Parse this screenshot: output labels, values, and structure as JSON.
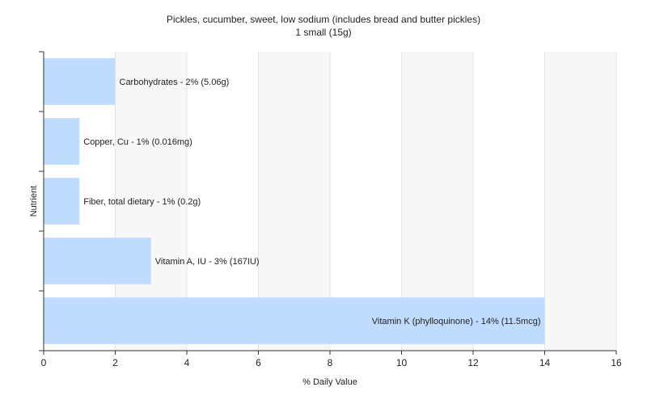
{
  "chart_data": {
    "type": "bar",
    "orientation": "horizontal",
    "title": "Pickles, cucumber, sweet, low sodium (includes bread and butter pickles)",
    "subtitle": "1 small (15g)",
    "xlabel": "% Daily Value",
    "ylabel": "Nutrient",
    "xlim": [
      0,
      16
    ],
    "xticks": [
      0,
      2,
      4,
      6,
      8,
      10,
      12,
      14,
      16
    ],
    "grid": true,
    "bar_color": "#bfdcff",
    "categories": [
      "Carbohydrates",
      "Copper, Cu",
      "Fiber, total dietary",
      "Vitamin A, IU",
      "Vitamin K (phylloquinone)"
    ],
    "values": [
      2,
      1,
      1,
      3,
      14
    ],
    "labels": [
      "Carbohydrates - 2% (5.06g)",
      "Copper, Cu - 1% (0.016mg)",
      "Fiber, total dietary - 1% (0.2g)",
      "Vitamin A, IU - 3% (167IU)",
      "Vitamin K (phylloquinone) - 14% (11.5mcg)"
    ]
  }
}
